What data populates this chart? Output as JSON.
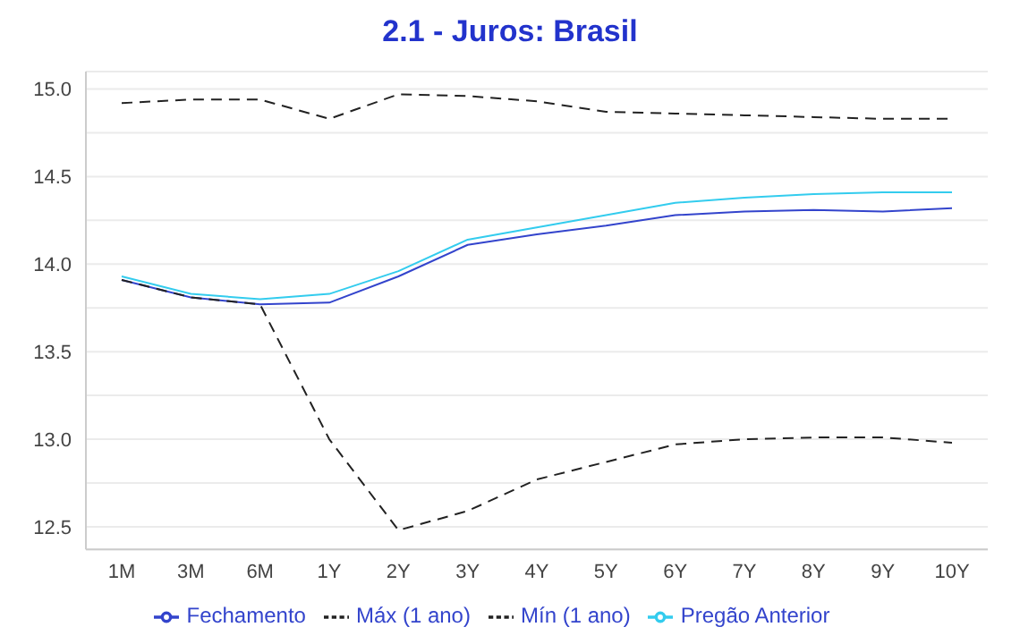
{
  "chart_data": {
    "type": "line",
    "title": "2.1 - Juros: Brasil",
    "categories": [
      "1M",
      "3M",
      "6M",
      "1Y",
      "2Y",
      "3Y",
      "4Y",
      "5Y",
      "6Y",
      "7Y",
      "8Y",
      "9Y",
      "10Y"
    ],
    "series": [
      {
        "name": "Fechamento",
        "color": "#3344cc",
        "line_style": "solid",
        "values": [
          13.91,
          13.81,
          13.77,
          13.78,
          13.93,
          14.11,
          14.17,
          14.22,
          14.28,
          14.3,
          14.31,
          14.3,
          14.32
        ]
      },
      {
        "name": "Pregão Anterior",
        "color": "#33ccee",
        "line_style": "solid",
        "values": [
          13.93,
          13.83,
          13.8,
          13.83,
          13.96,
          14.14,
          14.21,
          14.28,
          14.35,
          14.38,
          14.4,
          14.41,
          14.41
        ]
      },
      {
        "name": "Máx (1 ano)",
        "color": "#222222",
        "line_style": "dashed",
        "values": [
          14.92,
          14.94,
          14.94,
          14.83,
          14.97,
          14.96,
          14.93,
          14.87,
          14.86,
          14.85,
          14.84,
          14.83,
          14.83
        ]
      },
      {
        "name": "Mín (1 ano)",
        "color": "#222222",
        "line_style": "dashed",
        "values": [
          13.91,
          13.81,
          13.77,
          13.0,
          12.48,
          12.59,
          12.77,
          12.87,
          12.97,
          13.0,
          13.01,
          13.01,
          12.98
        ]
      }
    ],
    "ylim": [
      12.37,
      15.1
    ],
    "yticks": [
      12.5,
      {
        "value": 12.75,
        "label": null
      },
      "13.0",
      {
        "value": 13.25,
        "label": null
      },
      13.5,
      {
        "value": 13.75,
        "label": null
      },
      "14.0",
      {
        "value": 14.25,
        "label": null
      },
      14.5,
      {
        "value": 14.75,
        "label": null
      },
      "15.0"
    ],
    "grid": "y",
    "legend": "bottom",
    "marker": "none"
  }
}
